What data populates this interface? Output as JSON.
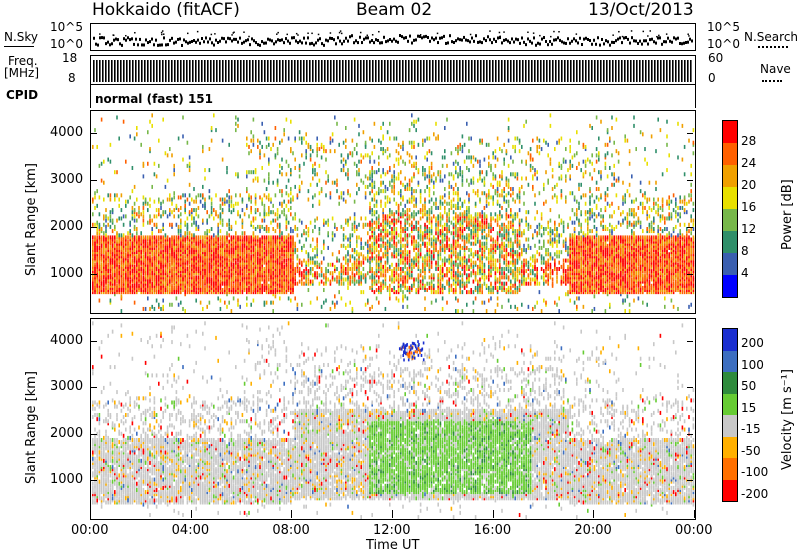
{
  "header": {
    "left_title": "Hokkaido (fitACF)",
    "center_title": "Beam 02",
    "right_title": "13/Oct/2013"
  },
  "noise_panel": {
    "left_label": "N.Sky",
    "right_label": "N.Search",
    "ticks_left": [
      "10^5",
      "10^0"
    ],
    "ticks_right": [
      "10^5",
      "10^0"
    ]
  },
  "freq_panel": {
    "left_label_line1": "Freq.",
    "left_label_line2": "[MHz]",
    "right_label": "Nave",
    "ticks_left": [
      "18",
      "8"
    ],
    "ticks_right": [
      "60",
      "0"
    ]
  },
  "cpid": {
    "label": "CPID",
    "value": "normal (fast) 151"
  },
  "chart_data": [
    {
      "type": "heatmap",
      "name_hint": "power",
      "ylabel": "Slant Range [km]",
      "ylim": [
        180,
        4500
      ],
      "yticks": [
        "1000",
        "2000",
        "3000",
        "4000"
      ],
      "colorbar_label": "Power [dB]",
      "colorbar_ticks": [
        "4",
        "8",
        "12",
        "16",
        "20",
        "24",
        "28"
      ],
      "colors": [
        "#0000ff",
        "#3a5fb0",
        "#2f8f6a",
        "#77b84a",
        "#e8e000",
        "#f0a000",
        "#ff6000",
        "#ff0000"
      ]
    },
    {
      "type": "heatmap",
      "name_hint": "velocity",
      "xlabel": "Time UT",
      "ylabel": "Slant Range [km]",
      "ylim": [
        180,
        4500
      ],
      "xticks": [
        "00:00",
        "04:00",
        "08:00",
        "12:00",
        "16:00",
        "20:00",
        "00:00"
      ],
      "yticks": [
        "1000",
        "2000",
        "3000",
        "4000"
      ],
      "colorbar_label": "Velocity [m s⁻¹]",
      "colorbar_ticks": [
        "200",
        "100",
        "50",
        "15",
        "-15",
        "-50",
        "-100",
        "-200"
      ],
      "colors": [
        "#1a2fd0",
        "#3c6ec0",
        "#2e8b3c",
        "#66cc33",
        "#c8c8c8",
        "#ffb000",
        "#ff7000",
        "#ff0000"
      ]
    }
  ]
}
